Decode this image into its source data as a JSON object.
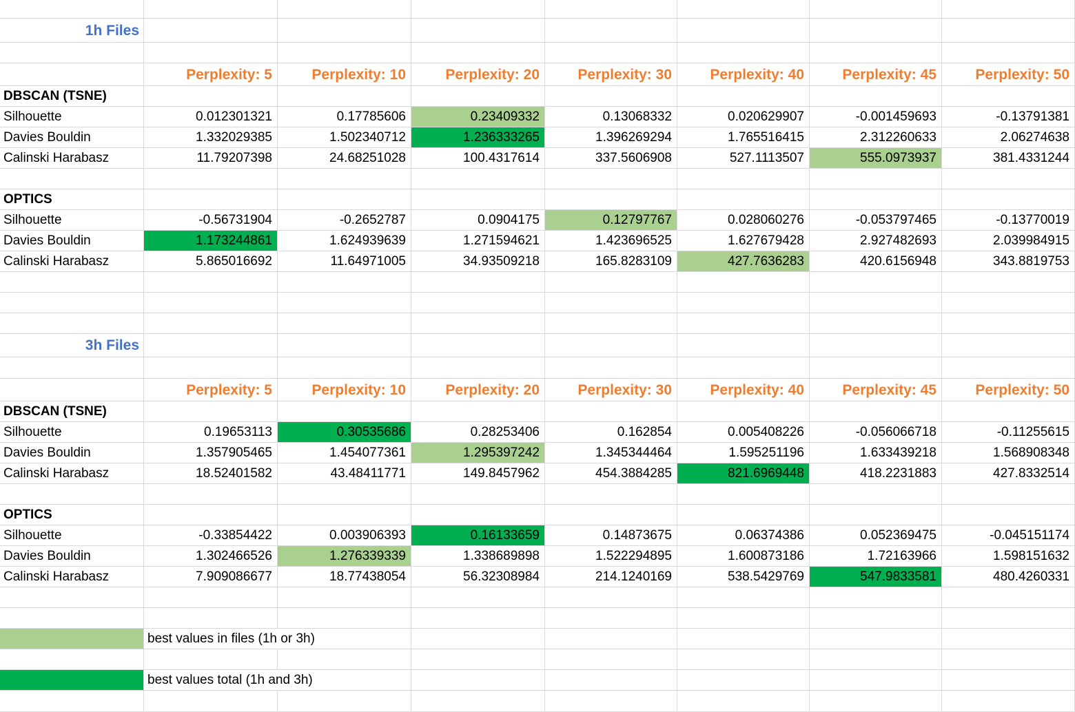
{
  "colors": {
    "section_title": "#4472c4",
    "perplexity_header": "#ed7d31",
    "best_in_files": "#a9d08e",
    "best_total": "#00b050",
    "gridline": "#d9d9d9"
  },
  "header_labels": [
    "Perplexity: 5",
    "Perplexity: 10",
    "Perplexity: 20",
    "Perplexity: 30",
    "Perplexity: 40",
    "Perplexity: 45",
    "Perplexity: 50"
  ],
  "sections": [
    {
      "title": "1h Files",
      "groups": [
        {
          "name": "DBSCAN (TSNE)",
          "rows": [
            {
              "label": "Silhouette",
              "values": [
                "0.012301321",
                "0.17785606",
                "0.23409332",
                "0.13068332",
                "0.020629907",
                "-0.001459693",
                "-0.13791381"
              ],
              "hl": [
                null,
                null,
                "best_in_files",
                null,
                null,
                null,
                null
              ]
            },
            {
              "label": "Davies Bouldin",
              "values": [
                "1.332029385",
                "1.502340712",
                "1.236333265",
                "1.396269294",
                "1.765516415",
                "2.312260633",
                "2.06274638"
              ],
              "hl": [
                null,
                null,
                "best_total",
                null,
                null,
                null,
                null
              ]
            },
            {
              "label": "Calinski Harabasz",
              "values": [
                "11.79207398",
                "24.68251028",
                "100.4317614",
                "337.5606908",
                "527.1113507",
                "555.0973937",
                "381.4331244"
              ],
              "hl": [
                null,
                null,
                null,
                null,
                null,
                "best_in_files",
                null
              ]
            }
          ]
        },
        {
          "name": "OPTICS",
          "rows": [
            {
              "label": "Silhouette",
              "values": [
                "-0.56731904",
                "-0.2652787",
                "0.0904175",
                "0.12797767",
                "0.028060276",
                "-0.053797465",
                "-0.13770019"
              ],
              "hl": [
                null,
                null,
                null,
                "best_in_files",
                null,
                null,
                null
              ]
            },
            {
              "label": "Davies Bouldin",
              "values": [
                "1.173244861",
                "1.624939639",
                "1.271594621",
                "1.423696525",
                "1.627679428",
                "2.927482693",
                "2.039984915"
              ],
              "hl": [
                "best_total",
                null,
                null,
                null,
                null,
                null,
                null
              ]
            },
            {
              "label": "Calinski Harabasz",
              "values": [
                "5.865016692",
                "11.64971005",
                "34.93509218",
                "165.8283109",
                "427.7636283",
                "420.6156948",
                "343.8819753"
              ],
              "hl": [
                null,
                null,
                null,
                null,
                "best_in_files",
                null,
                null
              ]
            }
          ]
        }
      ]
    },
    {
      "title": "3h Files",
      "groups": [
        {
          "name": "DBSCAN (TSNE)",
          "rows": [
            {
              "label": "Silhouette",
              "values": [
                "0.19653113",
                "0.30535686",
                "0.28253406",
                "0.162854",
                "0.005408226",
                "-0.056066718",
                "-0.11255615"
              ],
              "hl": [
                null,
                "best_total",
                null,
                null,
                null,
                null,
                null
              ]
            },
            {
              "label": "Davies Bouldin",
              "values": [
                "1.357905465",
                "1.454077361",
                "1.295397242",
                "1.345344464",
                "1.595251196",
                "1.633439218",
                "1.568908348"
              ],
              "hl": [
                null,
                null,
                "best_in_files",
                null,
                null,
                null,
                null
              ]
            },
            {
              "label": "Calinski Harabasz",
              "values": [
                "18.52401582",
                "43.48411771",
                "149.8457962",
                "454.3884285",
                "821.6969448",
                "418.2231883",
                "427.8332514"
              ],
              "hl": [
                null,
                null,
                null,
                null,
                "best_total",
                null,
                null
              ]
            }
          ]
        },
        {
          "name": "OPTICS",
          "rows": [
            {
              "label": "Silhouette",
              "values": [
                "-0.33854422",
                "0.003906393",
                "0.16133659",
                "0.14873675",
                "0.06374386",
                "0.052369475",
                "-0.045151174"
              ],
              "hl": [
                null,
                null,
                "best_total",
                null,
                null,
                null,
                null
              ]
            },
            {
              "label": "Davies Bouldin",
              "values": [
                "1.302466526",
                "1.276339339",
                "1.338689898",
                "1.522294895",
                "1.600873186",
                "1.72163966",
                "1.598151632"
              ],
              "hl": [
                null,
                "best_in_files",
                null,
                null,
                null,
                null,
                null
              ]
            },
            {
              "label": "Calinski Harabasz",
              "values": [
                "7.909086677",
                "18.77438054",
                "56.32308984",
                "214.1240169",
                "538.5429769",
                "547.9833581",
                "480.4260331"
              ],
              "hl": [
                null,
                null,
                null,
                null,
                null,
                "best_total",
                null
              ]
            }
          ]
        }
      ]
    }
  ],
  "legend": [
    {
      "key": "best_in_files",
      "text": "best values in files (1h or 3h)"
    },
    {
      "key": "best_total",
      "text": "best values total (1h and 3h)"
    }
  ]
}
